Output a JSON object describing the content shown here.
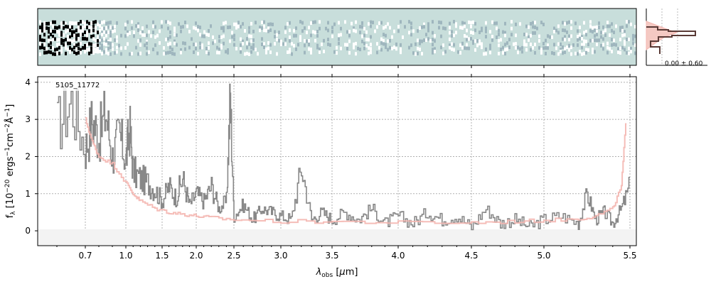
{
  "chart_data": {
    "type": "line",
    "object_id": "5105_11772",
    "xlabel": "λobs [μm]",
    "ylabel": "fλ [10^-20 ergs^-1 cm^-2 Å^-1]",
    "ylim": [
      -0.4,
      4.15
    ],
    "x_ticks": [
      "0.7",
      "1.0",
      "1.5",
      "2.0",
      "2.5",
      "3.0",
      "3.5",
      "4.0",
      "4.5",
      "5.0",
      "5.5"
    ],
    "y_ticks": [
      "0",
      "1",
      "2",
      "3",
      "4"
    ],
    "grid": true,
    "x_scale": "nonlinear (compressed at blue end)",
    "series": [
      {
        "color": "#888888",
        "style": "step",
        "x": [
          0.6,
          0.65,
          0.7,
          0.75,
          0.8,
          0.85,
          0.9,
          0.95,
          1.0,
          1.05,
          1.1,
          1.2,
          1.3,
          1.4,
          1.5,
          1.6,
          1.7,
          1.8,
          1.9,
          2.0,
          2.1,
          2.2,
          2.3,
          2.4,
          2.45,
          2.5,
          2.6,
          2.7,
          2.8,
          2.9,
          3.0,
          3.1,
          3.2,
          3.3,
          3.4,
          3.5,
          3.6,
          3.7,
          3.8,
          3.9,
          4.0,
          4.1,
          4.2,
          4.3,
          4.4,
          4.5,
          4.6,
          4.7,
          4.8,
          4.9,
          5.0,
          5.1,
          5.2,
          5.25,
          5.3,
          5.35,
          5.4,
          5.45,
          5.5
        ],
        "y": [
          2.8,
          3.5,
          2.2,
          3.0,
          2.5,
          3.2,
          2.0,
          2.6,
          1.9,
          2.8,
          1.6,
          1.4,
          1.3,
          1.1,
          0.8,
          1.2,
          0.9,
          1.4,
          0.7,
          1.0,
          0.8,
          1.2,
          0.6,
          0.8,
          3.6,
          0.4,
          0.7,
          0.3,
          0.6,
          0.5,
          0.4,
          0.3,
          1.7,
          0.3,
          0.5,
          0.3,
          0.5,
          0.3,
          0.6,
          0.2,
          0.4,
          0.2,
          0.5,
          0.3,
          0.4,
          0.1,
          0.6,
          0.2,
          0.3,
          0.1,
          0.3,
          0.4,
          0.2,
          1.0,
          0.3,
          0.5,
          0.2,
          0.6,
          1.2
        ]
      },
      {
        "color": "#f4b6b0",
        "style": "step",
        "x": [
          0.7,
          0.75,
          0.8,
          0.9,
          1.0,
          1.1,
          1.2,
          1.4,
          1.6,
          1.8,
          2.0,
          2.2,
          2.5,
          3.0,
          3.5,
          4.0,
          4.5,
          4.8,
          5.0,
          5.2,
          5.3,
          5.4,
          5.45,
          5.48
        ],
        "y": [
          3.0,
          2.4,
          2.0,
          1.8,
          1.3,
          1.0,
          0.8,
          0.6,
          0.5,
          0.45,
          0.4,
          0.35,
          0.3,
          0.25,
          0.25,
          0.22,
          0.22,
          0.25,
          0.28,
          0.32,
          0.4,
          0.6,
          1.2,
          3.2
        ]
      }
    ],
    "histogram_annotation": "0.00 ± 0.60"
  }
}
